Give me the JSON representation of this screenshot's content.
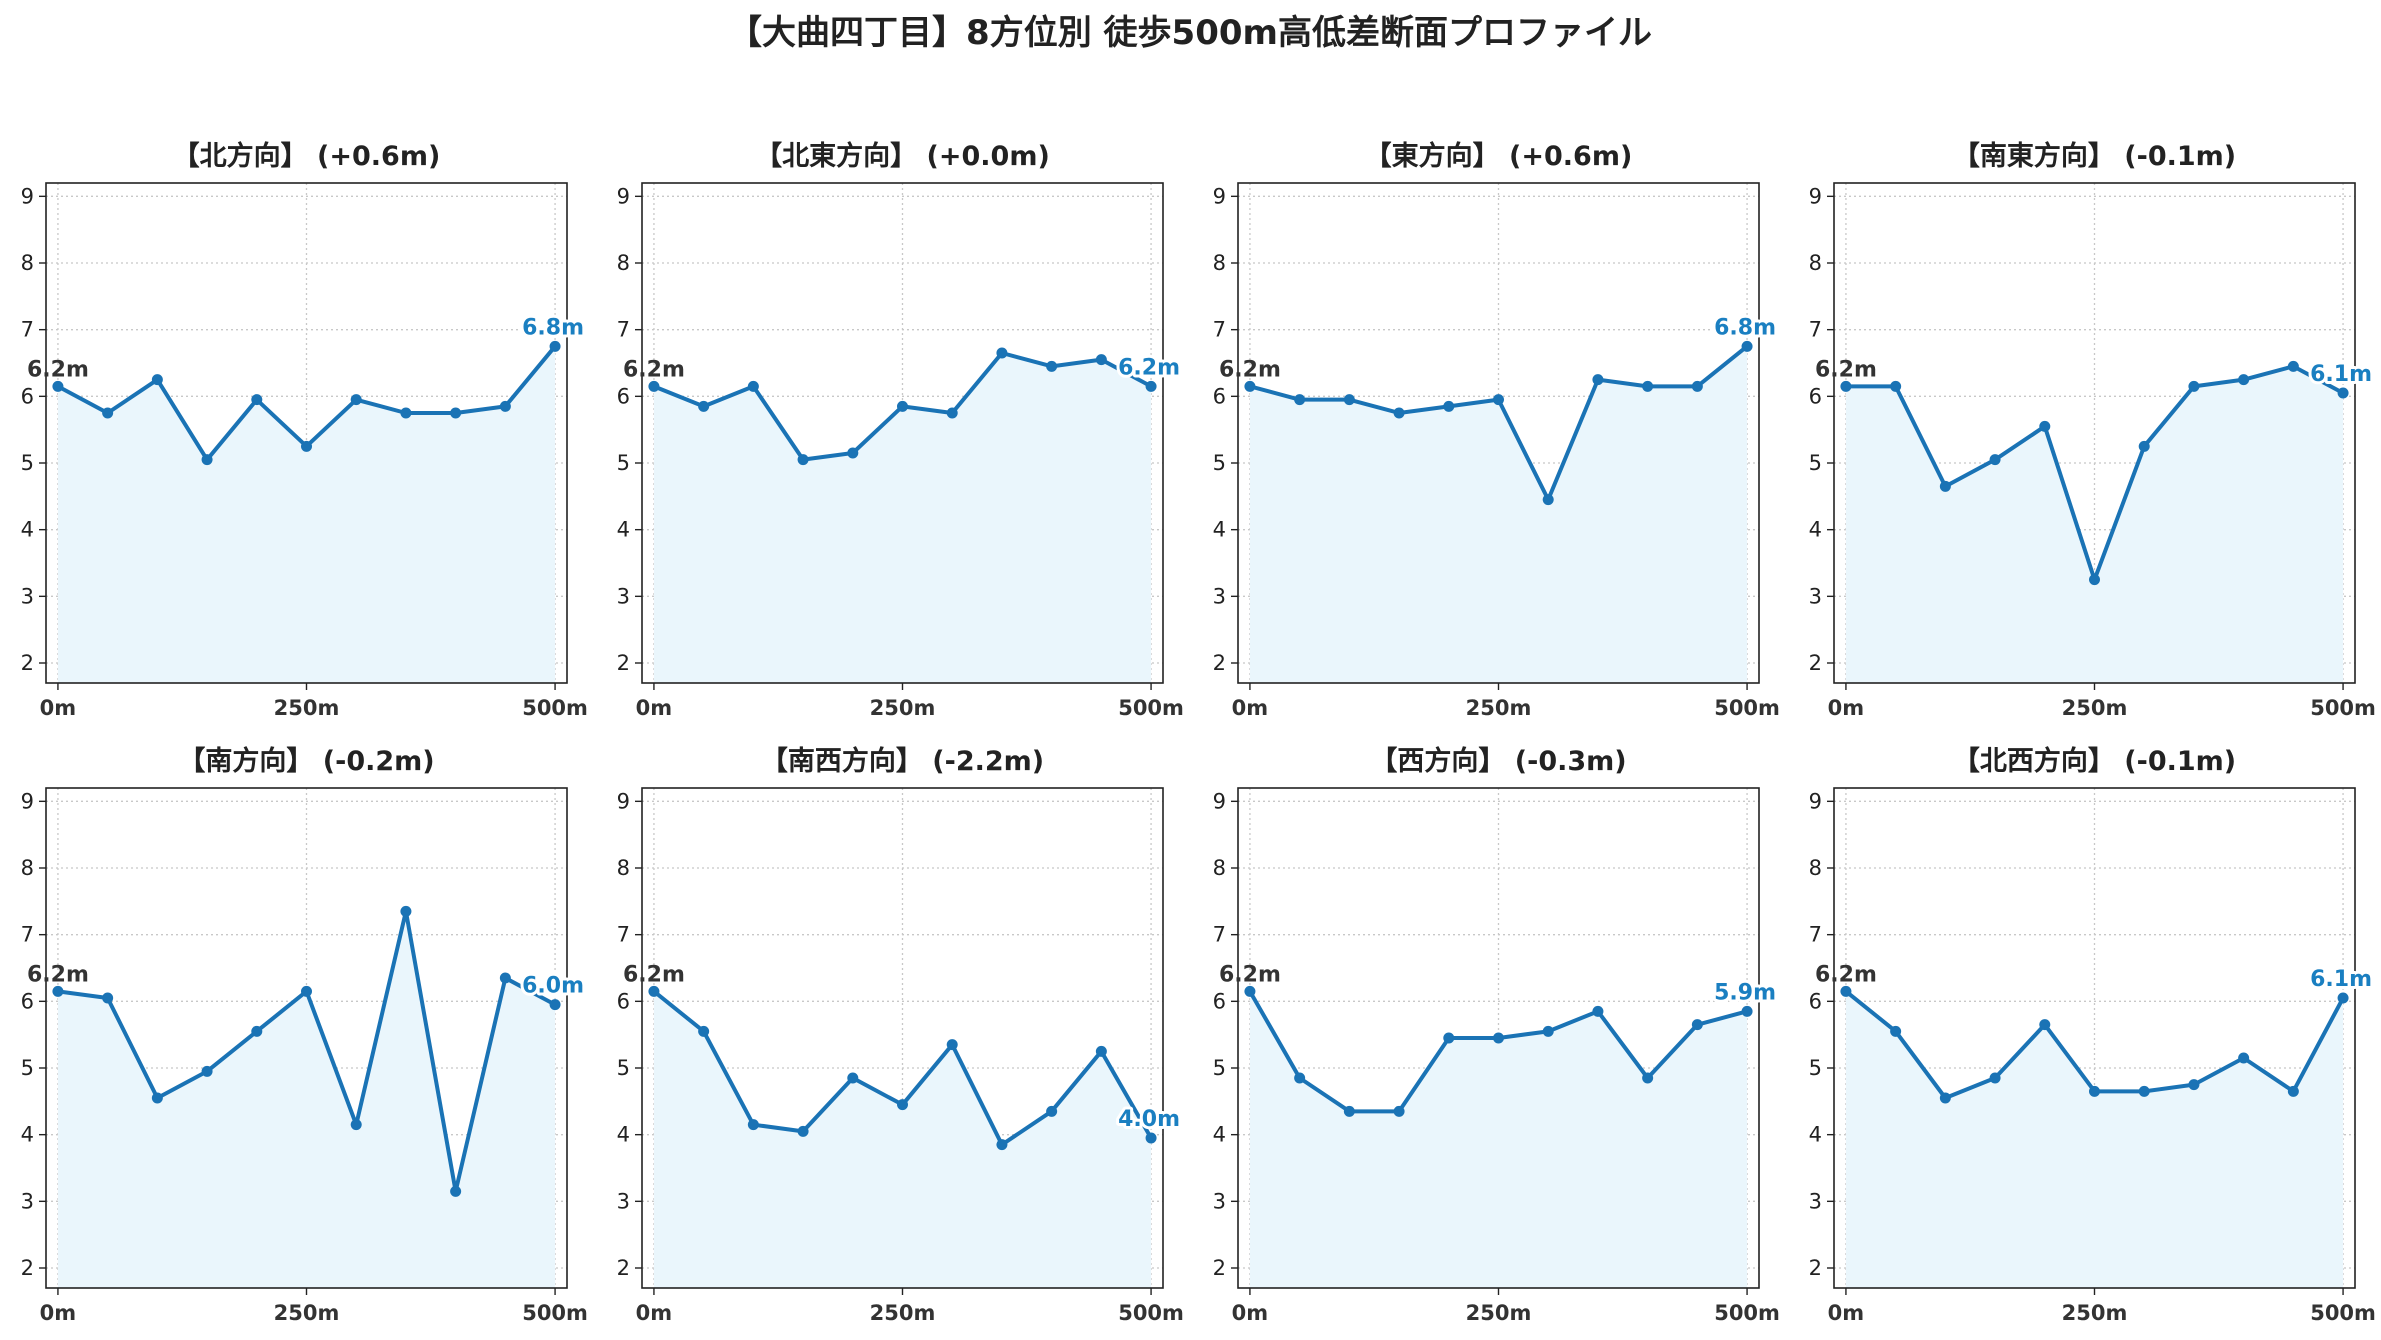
{
  "title": "【大曲四丁目】8方位別 徒歩500m高低差断面プロファイル",
  "colors": {
    "line": "#1a73b5",
    "fill": "#eaf6fc",
    "end_label": "#1a7fc1",
    "start_label": "#333333",
    "grid": "#c8c8c8"
  },
  "chart_data": [
    {
      "type": "area",
      "title": "【北方向】 (+0.6m)",
      "x": [
        0,
        50,
        100,
        150,
        200,
        250,
        300,
        350,
        400,
        450,
        500
      ],
      "y": [
        6.15,
        5.75,
        6.25,
        5.05,
        5.95,
        5.25,
        5.95,
        5.75,
        5.75,
        5.85,
        6.75
      ],
      "start_label": "6.2m",
      "end_label": "6.8m",
      "xticks": [
        "0m",
        "250m",
        "500m"
      ],
      "yticks": [
        2,
        3,
        4,
        5,
        6,
        7,
        8,
        9
      ],
      "ylim": [
        1.7,
        9.2
      ],
      "xlim": [
        -12,
        512
      ],
      "grid": true
    },
    {
      "type": "area",
      "title": "【北東方向】 (+0.0m)",
      "x": [
        0,
        50,
        100,
        150,
        200,
        250,
        300,
        350,
        400,
        450,
        500
      ],
      "y": [
        6.15,
        5.85,
        6.15,
        5.05,
        5.15,
        5.85,
        5.75,
        6.65,
        6.45,
        6.55,
        6.15
      ],
      "start_label": "6.2m",
      "end_label": "6.2m",
      "xticks": [
        "0m",
        "250m",
        "500m"
      ],
      "yticks": [
        2,
        3,
        4,
        5,
        6,
        7,
        8,
        9
      ],
      "ylim": [
        1.7,
        9.2
      ],
      "xlim": [
        -12,
        512
      ],
      "grid": true
    },
    {
      "type": "area",
      "title": "【東方向】 (+0.6m)",
      "x": [
        0,
        50,
        100,
        150,
        200,
        250,
        300,
        350,
        400,
        450,
        500
      ],
      "y": [
        6.15,
        5.95,
        5.95,
        5.75,
        5.85,
        5.95,
        4.45,
        6.25,
        6.15,
        6.15,
        6.75
      ],
      "start_label": "6.2m",
      "end_label": "6.8m",
      "xticks": [
        "0m",
        "250m",
        "500m"
      ],
      "yticks": [
        2,
        3,
        4,
        5,
        6,
        7,
        8,
        9
      ],
      "ylim": [
        1.7,
        9.2
      ],
      "xlim": [
        -12,
        512
      ],
      "grid": true
    },
    {
      "type": "area",
      "title": "【南東方向】 (-0.1m)",
      "x": [
        0,
        50,
        100,
        150,
        200,
        250,
        300,
        350,
        400,
        450,
        500
      ],
      "y": [
        6.15,
        6.15,
        4.65,
        5.05,
        5.55,
        3.25,
        5.25,
        6.15,
        6.25,
        6.45,
        6.05
      ],
      "start_label": "6.2m",
      "end_label": "6.1m",
      "xticks": [
        "0m",
        "250m",
        "500m"
      ],
      "yticks": [
        2,
        3,
        4,
        5,
        6,
        7,
        8,
        9
      ],
      "ylim": [
        1.7,
        9.2
      ],
      "xlim": [
        -12,
        512
      ],
      "grid": true
    },
    {
      "type": "area",
      "title": "【南方向】 (-0.2m)",
      "x": [
        0,
        50,
        100,
        150,
        200,
        250,
        300,
        350,
        400,
        450,
        500
      ],
      "y": [
        6.15,
        6.05,
        4.55,
        4.95,
        5.55,
        6.15,
        4.15,
        7.35,
        3.15,
        6.35,
        5.95
      ],
      "start_label": "6.2m",
      "end_label": "6.0m",
      "xticks": [
        "0m",
        "250m",
        "500m"
      ],
      "yticks": [
        2,
        3,
        4,
        5,
        6,
        7,
        8,
        9
      ],
      "ylim": [
        1.7,
        9.2
      ],
      "xlim": [
        -12,
        512
      ],
      "grid": true
    },
    {
      "type": "area",
      "title": "【南西方向】 (-2.2m)",
      "x": [
        0,
        50,
        100,
        150,
        200,
        250,
        300,
        350,
        400,
        450,
        500
      ],
      "y": [
        6.15,
        5.55,
        4.15,
        4.05,
        4.85,
        4.45,
        5.35,
        3.85,
        4.35,
        5.25,
        3.95
      ],
      "start_label": "6.2m",
      "end_label": "4.0m",
      "xticks": [
        "0m",
        "250m",
        "500m"
      ],
      "yticks": [
        2,
        3,
        4,
        5,
        6,
        7,
        8,
        9
      ],
      "ylim": [
        1.7,
        9.2
      ],
      "xlim": [
        -12,
        512
      ],
      "grid": true
    },
    {
      "type": "area",
      "title": "【西方向】 (-0.3m)",
      "x": [
        0,
        50,
        100,
        150,
        200,
        250,
        300,
        350,
        400,
        450,
        500
      ],
      "y": [
        6.15,
        4.85,
        4.35,
        4.35,
        5.45,
        5.45,
        5.55,
        5.85,
        4.85,
        5.65,
        5.85
      ],
      "start_label": "6.2m",
      "end_label": "5.9m",
      "xticks": [
        "0m",
        "250m",
        "500m"
      ],
      "yticks": [
        2,
        3,
        4,
        5,
        6,
        7,
        8,
        9
      ],
      "ylim": [
        1.7,
        9.2
      ],
      "xlim": [
        -12,
        512
      ],
      "grid": true
    },
    {
      "type": "area",
      "title": "【北西方向】 (-0.1m)",
      "x": [
        0,
        50,
        100,
        150,
        200,
        250,
        300,
        350,
        400,
        450,
        500
      ],
      "y": [
        6.15,
        5.55,
        4.55,
        4.85,
        5.65,
        4.65,
        4.65,
        4.75,
        5.15,
        4.65,
        6.05
      ],
      "start_label": "6.2m",
      "end_label": "6.1m",
      "xticks": [
        "0m",
        "250m",
        "500m"
      ],
      "yticks": [
        2,
        3,
        4,
        5,
        6,
        7,
        8,
        9
      ],
      "ylim": [
        1.7,
        9.2
      ],
      "xlim": [
        -12,
        512
      ],
      "grid": true
    }
  ]
}
